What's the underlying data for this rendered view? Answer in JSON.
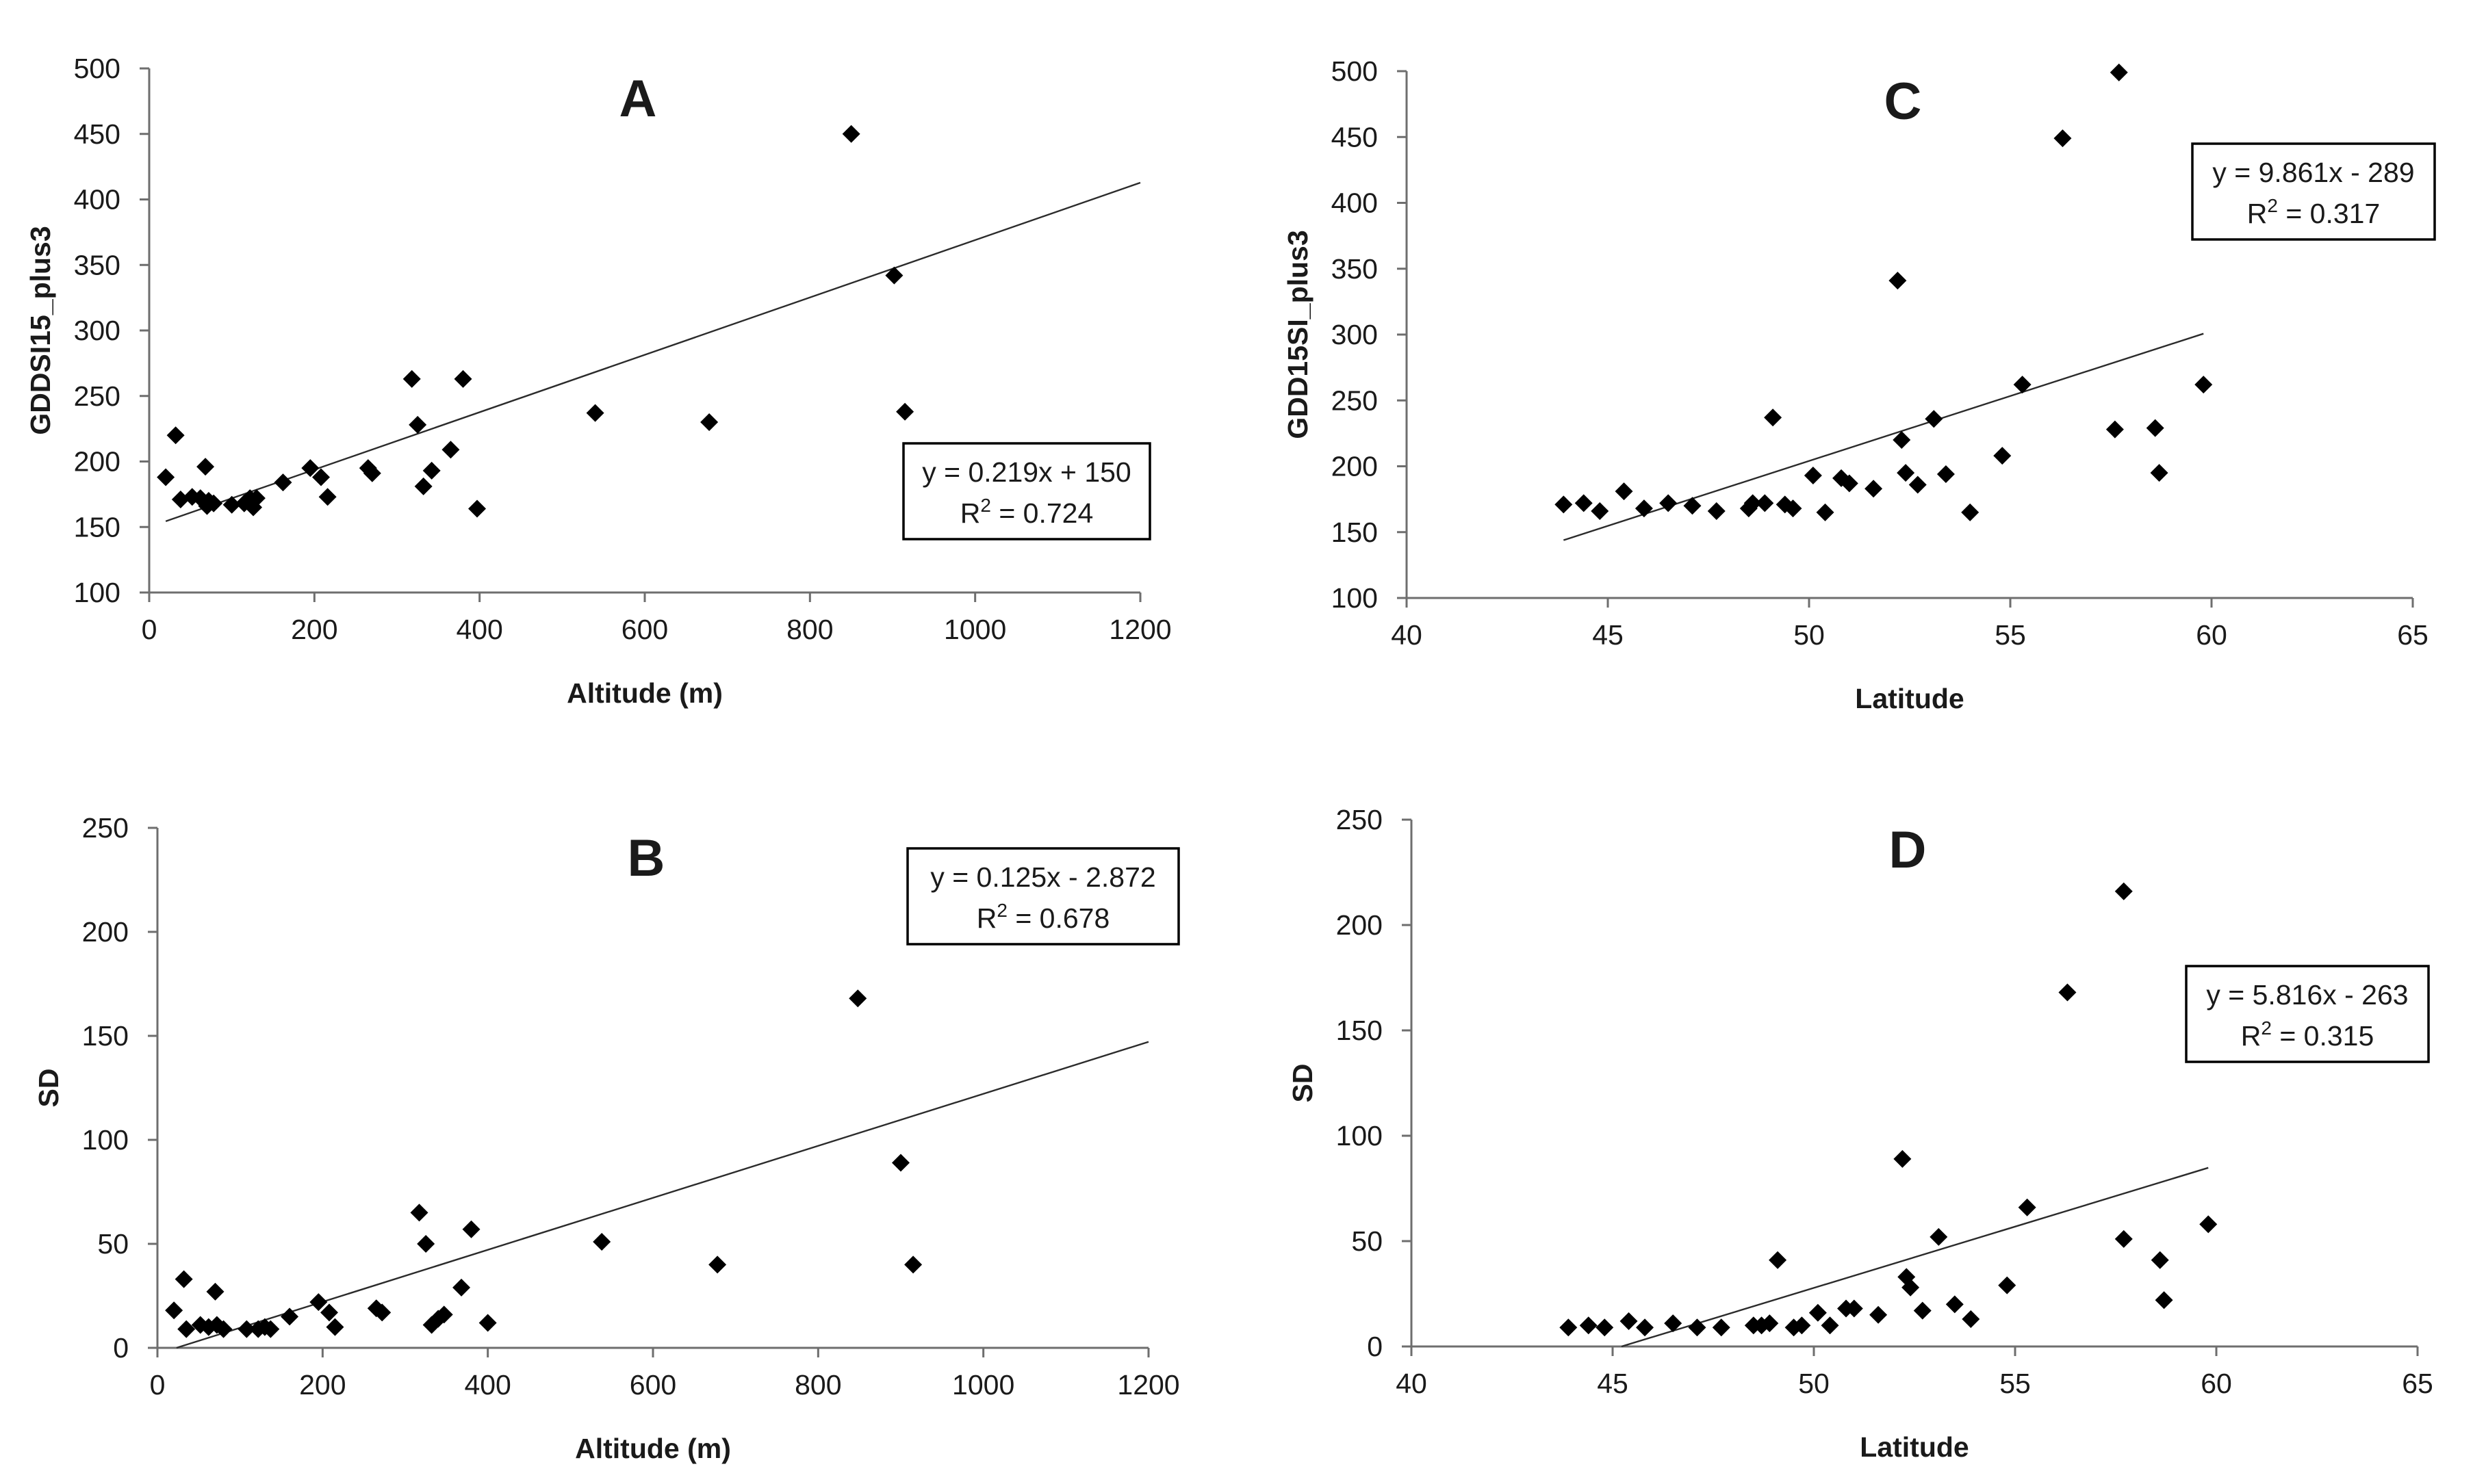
{
  "chart_data": [
    {
      "id": "A",
      "type": "scatter",
      "panel_label": "A",
      "xlabel": "Altitude (m)",
      "ylabel": "GDDSI15_plus3",
      "xlim": [
        0,
        1200
      ],
      "ylim": [
        100,
        500
      ],
      "xticks": [
        0,
        200,
        400,
        600,
        800,
        1000,
        1200
      ],
      "yticks": [
        100,
        150,
        200,
        250,
        300,
        350,
        400,
        450,
        500
      ],
      "legend_position": "middle-right",
      "equation": "y = 0.219x + 150",
      "r2_prefix": "R",
      "r2_suffix": " = 0.724",
      "trendline": {
        "slope": 0.219,
        "intercept": 150,
        "x_range": [
          20,
          1200
        ]
      },
      "points": [
        [
          20,
          188
        ],
        [
          32,
          220
        ],
        [
          38,
          171
        ],
        [
          52,
          173
        ],
        [
          62,
          172
        ],
        [
          68,
          196
        ],
        [
          70,
          166
        ],
        [
          72,
          170
        ],
        [
          78,
          168
        ],
        [
          100,
          167
        ],
        [
          115,
          168
        ],
        [
          122,
          172
        ],
        [
          126,
          165
        ],
        [
          130,
          172
        ],
        [
          162,
          184
        ],
        [
          195,
          195
        ],
        [
          208,
          188
        ],
        [
          216,
          173
        ],
        [
          265,
          195
        ],
        [
          270,
          191
        ],
        [
          318,
          263
        ],
        [
          325,
          228
        ],
        [
          332,
          181
        ],
        [
          342,
          193
        ],
        [
          365,
          209
        ],
        [
          380,
          263
        ],
        [
          397,
          164
        ],
        [
          540,
          237
        ],
        [
          678,
          230
        ],
        [
          850,
          450
        ],
        [
          902,
          342
        ],
        [
          915,
          238
        ]
      ]
    },
    {
      "id": "B",
      "type": "scatter",
      "panel_label": "B",
      "xlabel": "Altitude (m)",
      "ylabel": "SD",
      "xlim": [
        0,
        1200
      ],
      "ylim": [
        0,
        250
      ],
      "xticks": [
        0,
        200,
        400,
        600,
        800,
        1000,
        1200
      ],
      "yticks": [
        0,
        50,
        100,
        150,
        200,
        250
      ],
      "legend_position": "top-right",
      "equation": "y = 0.125x - 2.872",
      "r2_prefix": "R",
      "r2_suffix": " = 0.678",
      "trendline": {
        "slope": 0.125,
        "intercept": -2.872,
        "x_range": [
          23,
          1200
        ]
      },
      "points": [
        [
          20,
          18
        ],
        [
          32,
          33
        ],
        [
          35,
          9
        ],
        [
          52,
          11
        ],
        [
          62,
          10
        ],
        [
          70,
          27
        ],
        [
          72,
          11
        ],
        [
          80,
          9
        ],
        [
          108,
          9
        ],
        [
          122,
          9
        ],
        [
          130,
          10
        ],
        [
          137,
          9
        ],
        [
          160,
          15
        ],
        [
          195,
          22
        ],
        [
          208,
          17
        ],
        [
          215,
          10
        ],
        [
          265,
          19
        ],
        [
          272,
          17
        ],
        [
          317,
          65
        ],
        [
          325,
          50
        ],
        [
          332,
          11
        ],
        [
          340,
          14
        ],
        [
          347,
          16
        ],
        [
          368,
          29
        ],
        [
          380,
          57
        ],
        [
          400,
          12
        ],
        [
          538,
          51
        ],
        [
          678,
          40
        ],
        [
          848,
          168
        ],
        [
          900,
          89
        ],
        [
          915,
          40
        ]
      ]
    },
    {
      "id": "C",
      "type": "scatter",
      "panel_label": "C",
      "xlabel": "Latitude",
      "ylabel": "GDD15SI_plus3",
      "xlim": [
        40,
        65
      ],
      "ylim": [
        100,
        500
      ],
      "xticks": [
        40,
        45,
        50,
        55,
        60,
        65
      ],
      "yticks": [
        100,
        150,
        200,
        250,
        300,
        350,
        400,
        450,
        500
      ],
      "legend_position": "top-right",
      "equation": "y = 9.861x - 289",
      "r2_prefix": "R",
      "r2_suffix": " = 0.317",
      "trendline": {
        "slope": 9.861,
        "intercept": -289,
        "x_range": [
          43.9,
          59.8
        ]
      },
      "points": [
        [
          43.9,
          171
        ],
        [
          44.4,
          172
        ],
        [
          44.8,
          166
        ],
        [
          45.4,
          181
        ],
        [
          45.9,
          168
        ],
        [
          46.5,
          172
        ],
        [
          47.1,
          170
        ],
        [
          47.7,
          166
        ],
        [
          48.5,
          168
        ],
        [
          48.6,
          172
        ],
        [
          48.9,
          172
        ],
        [
          49.1,
          237
        ],
        [
          49.4,
          171
        ],
        [
          49.6,
          168
        ],
        [
          50.1,
          193
        ],
        [
          50.4,
          165
        ],
        [
          50.8,
          191
        ],
        [
          51.0,
          187
        ],
        [
          51.6,
          183
        ],
        [
          52.2,
          341
        ],
        [
          52.3,
          220
        ],
        [
          52.4,
          195
        ],
        [
          52.7,
          186
        ],
        [
          53.1,
          236
        ],
        [
          53.4,
          194
        ],
        [
          54.0,
          165
        ],
        [
          54.8,
          208
        ],
        [
          55.3,
          262
        ],
        [
          56.3,
          449
        ],
        [
          57.6,
          228
        ],
        [
          57.7,
          499
        ],
        [
          58.6,
          229
        ],
        [
          58.7,
          195
        ],
        [
          59.8,
          262
        ]
      ]
    },
    {
      "id": "D",
      "type": "scatter",
      "panel_label": "D",
      "xlabel": "Latitude",
      "ylabel": "SD",
      "xlim": [
        40,
        65
      ],
      "ylim": [
        0,
        250
      ],
      "xticks": [
        40,
        45,
        50,
        55,
        60,
        65
      ],
      "yticks": [
        0,
        50,
        100,
        150,
        200,
        250
      ],
      "legend_position": "middle-right",
      "equation": "y = 5.816x - 263",
      "r2_prefix": "R",
      "r2_suffix": " = 0.315",
      "trendline": {
        "slope": 5.816,
        "intercept": -263,
        "x_range": [
          45.2,
          59.8
        ]
      },
      "points": [
        [
          43.9,
          9
        ],
        [
          44.4,
          10
        ],
        [
          44.8,
          9
        ],
        [
          45.4,
          12
        ],
        [
          45.8,
          9
        ],
        [
          46.5,
          11
        ],
        [
          47.1,
          9
        ],
        [
          47.7,
          9
        ],
        [
          48.5,
          10
        ],
        [
          48.7,
          10
        ],
        [
          48.9,
          11
        ],
        [
          49.1,
          41
        ],
        [
          49.5,
          9
        ],
        [
          49.7,
          10
        ],
        [
          50.1,
          16
        ],
        [
          50.4,
          10
        ],
        [
          50.8,
          18
        ],
        [
          51.0,
          18
        ],
        [
          51.6,
          15
        ],
        [
          52.2,
          89
        ],
        [
          52.3,
          33
        ],
        [
          52.4,
          28
        ],
        [
          52.7,
          17
        ],
        [
          53.1,
          52
        ],
        [
          53.5,
          20
        ],
        [
          53.9,
          13
        ],
        [
          54.8,
          29
        ],
        [
          55.3,
          66
        ],
        [
          56.3,
          168
        ],
        [
          57.7,
          216
        ],
        [
          57.7,
          51
        ],
        [
          58.6,
          41
        ],
        [
          58.7,
          22
        ],
        [
          59.8,
          58
        ]
      ]
    }
  ]
}
